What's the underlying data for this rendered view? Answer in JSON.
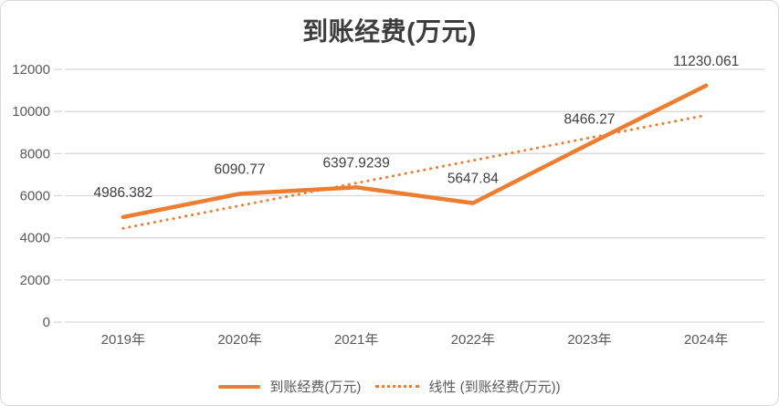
{
  "chart_data": {
    "type": "line",
    "title": "到账经费(万元)",
    "categories": [
      "2019年",
      "2020年",
      "2021年",
      "2022年",
      "2023年",
      "2024年"
    ],
    "series": [
      {
        "name": "到账经费(万元)",
        "style": "solid",
        "values": [
          4986.382,
          6090.77,
          6397.9239,
          5647.84,
          8466.27,
          11230.061
        ]
      },
      {
        "name": "线性 (到账经费(万元))",
        "style": "dotted",
        "type": "linear_trendline_of_series_0"
      }
    ],
    "data_labels": [
      "4986.382",
      "6090.77",
      "6397.9239",
      "5647.84",
      "8466.27",
      "11230.061"
    ],
    "ylim": [
      0,
      12000
    ],
    "y_ticks": [
      "0",
      "2000",
      "4000",
      "6000",
      "8000",
      "10000",
      "12000"
    ],
    "grid": "horizontal",
    "legend_position": "bottom",
    "colors": {
      "series": "#ED7D31",
      "grid": "#D9D9D9",
      "axis_text": "#595959",
      "label_text": "#404040",
      "title_text": "#3D3D3D",
      "border": "#D9D9D9",
      "background": "#FFFFFF"
    }
  }
}
